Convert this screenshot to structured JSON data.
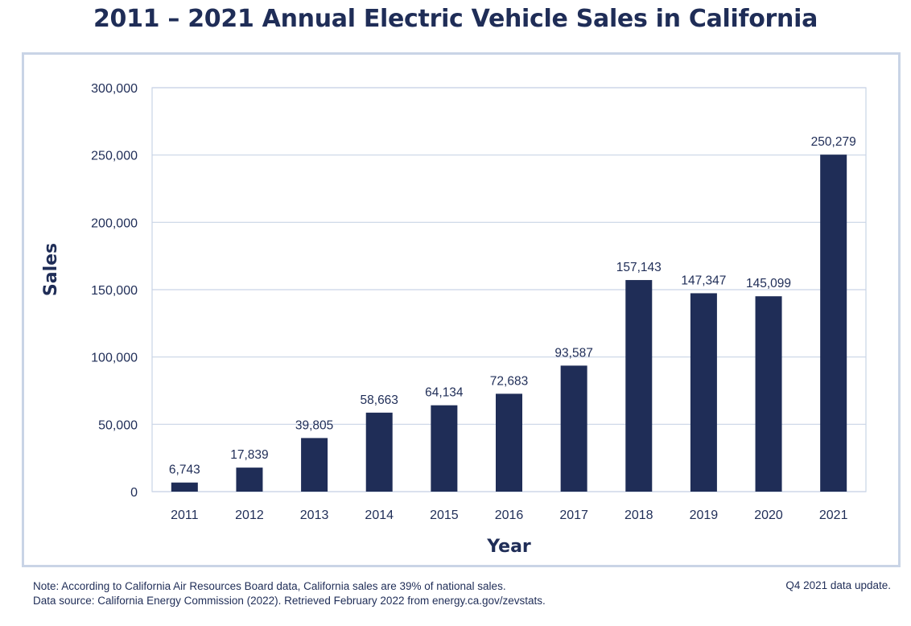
{
  "header": {
    "title": "2011 – 2021 Annual Electric Vehicle Sales in California"
  },
  "chart_data": {
    "type": "bar",
    "title": "2011 – 2021 Annual Electric Vehicle Sales in California",
    "xlabel": "Year",
    "ylabel": "Sales",
    "categories": [
      "2011",
      "2012",
      "2013",
      "2014",
      "2015",
      "2016",
      "2017",
      "2018",
      "2019",
      "2020",
      "2021"
    ],
    "values": [
      6743,
      17839,
      39805,
      58663,
      64134,
      72683,
      93587,
      157143,
      147347,
      145099,
      250279
    ],
    "data_labels": [
      "6,743",
      "17,839",
      "39,805",
      "58,663",
      "64,134",
      "72,683",
      "93,587",
      "157,143",
      "147,347",
      "145,099",
      "250,279"
    ],
    "ylim": [
      0,
      300000
    ],
    "yticks": [
      0,
      50000,
      100000,
      150000,
      200000,
      250000,
      300000
    ],
    "ytick_labels": [
      "0",
      "50,000",
      "100,000",
      "150,000",
      "200,000",
      "250,000",
      "300,000"
    ],
    "grid": true,
    "bar_color": "#1f2d57",
    "grid_color": "#c9d4e6"
  },
  "footer": {
    "note_line1": "Note: According to California Air Resources Board data, California sales are 39% of national sales.",
    "note_line2": "Data source: California Energy Commission (2022). Retrieved February 2022 from energy.ca.gov/zevstats.",
    "update": "Q4 2021 data update."
  }
}
